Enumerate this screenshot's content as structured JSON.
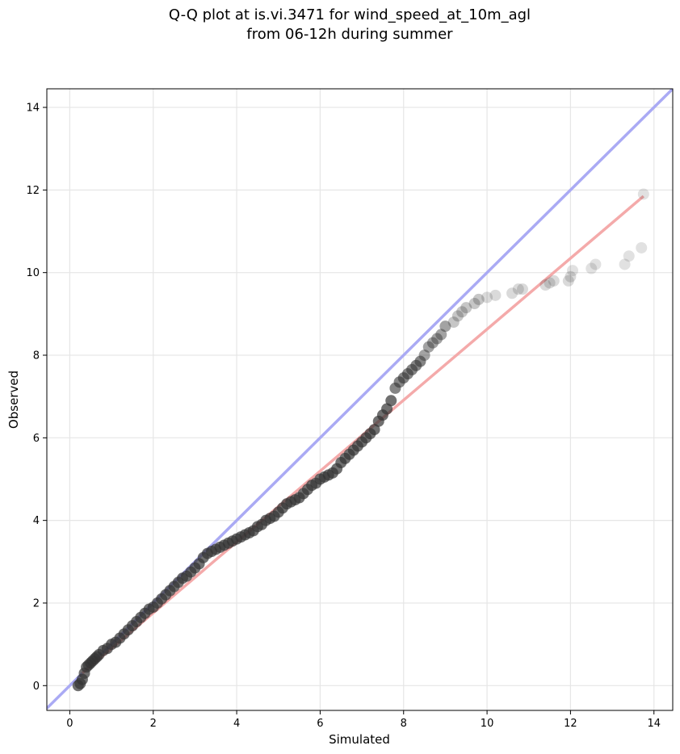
{
  "chart_data": {
    "type": "scatter",
    "title_line1": "Q-Q plot at is.vi.3471 for wind_speed_at_10m_agl",
    "title_line2": "from 06-12h during summer",
    "xlabel": "Simulated",
    "ylabel": "Observed",
    "xlim": [
      -0.55,
      14.45
    ],
    "ylim": [
      -0.6,
      14.45
    ],
    "xticks": [
      "0",
      "2",
      "4",
      "6",
      "8",
      "10",
      "12",
      "14"
    ],
    "yticks": [
      "0",
      "2",
      "4",
      "6",
      "8",
      "10",
      "12",
      "14"
    ],
    "grid": true,
    "reference_line": {
      "name": "1:1",
      "color": "#aaaaf4",
      "x": [
        -0.55,
        14.45
      ],
      "y": [
        -0.55,
        14.45
      ]
    },
    "fit_line": {
      "name": "fit",
      "color": "#f4aaaa",
      "x": [
        0.3,
        13.75
      ],
      "y": [
        0.3,
        11.85
      ]
    },
    "marker_color": "#333333",
    "series": [
      {
        "x": [
          0.2,
          0.25,
          0.3,
          0.35,
          0.4,
          0.45,
          0.5,
          0.55,
          0.6,
          0.65,
          0.7,
          0.8,
          0.9,
          1.0,
          1.1,
          1.2,
          1.3,
          1.4,
          1.5,
          1.6,
          1.7,
          1.8,
          1.9,
          2.0,
          2.1,
          2.2,
          2.3,
          2.4,
          2.5,
          2.6,
          2.7,
          2.8,
          2.9,
          3.0,
          3.1,
          3.2,
          3.3,
          3.4,
          3.5,
          3.6,
          3.7,
          3.8,
          3.9,
          4.0,
          4.1,
          4.2,
          4.3,
          4.4,
          4.5,
          4.6,
          4.7,
          4.8,
          4.9,
          5.0,
          5.1,
          5.2,
          5.3,
          5.4,
          5.5,
          5.6,
          5.7,
          5.8,
          5.9,
          6.0,
          6.1,
          6.2,
          6.3,
          6.4,
          6.5,
          6.6,
          6.7,
          6.8,
          6.9,
          7.0,
          7.1,
          7.2,
          7.3,
          7.4,
          7.5,
          7.6,
          7.7,
          7.8,
          7.9,
          8.0,
          8.1,
          8.2,
          8.3,
          8.4,
          8.5,
          8.6,
          8.7,
          8.8,
          8.9,
          9.0,
          9.2,
          9.3,
          9.4,
          9.5,
          9.7,
          9.8,
          10.0,
          10.2,
          10.6,
          10.75,
          10.85,
          11.4,
          11.5,
          11.6,
          11.95,
          12.0,
          12.05,
          12.5,
          12.6,
          13.3,
          13.4,
          13.7,
          13.75
        ],
        "y": [
          0.0,
          0.05,
          0.15,
          0.3,
          0.45,
          0.5,
          0.55,
          0.6,
          0.65,
          0.7,
          0.75,
          0.85,
          0.9,
          1.0,
          1.05,
          1.15,
          1.25,
          1.35,
          1.45,
          1.55,
          1.65,
          1.75,
          1.85,
          1.9,
          2.0,
          2.1,
          2.2,
          2.3,
          2.4,
          2.5,
          2.6,
          2.65,
          2.75,
          2.85,
          2.95,
          3.1,
          3.2,
          3.25,
          3.3,
          3.35,
          3.4,
          3.45,
          3.5,
          3.55,
          3.6,
          3.65,
          3.7,
          3.75,
          3.85,
          3.9,
          4.0,
          4.05,
          4.1,
          4.2,
          4.3,
          4.4,
          4.45,
          4.5,
          4.55,
          4.65,
          4.75,
          4.85,
          4.9,
          5.0,
          5.05,
          5.1,
          5.15,
          5.25,
          5.4,
          5.5,
          5.6,
          5.7,
          5.8,
          5.9,
          6.0,
          6.1,
          6.2,
          6.4,
          6.55,
          6.7,
          6.9,
          7.2,
          7.35,
          7.45,
          7.55,
          7.65,
          7.75,
          7.85,
          8.0,
          8.2,
          8.3,
          8.4,
          8.5,
          8.7,
          8.8,
          8.95,
          9.05,
          9.15,
          9.25,
          9.35,
          9.4,
          9.45,
          9.5,
          9.6,
          9.6,
          9.7,
          9.75,
          9.8,
          9.8,
          9.9,
          10.05,
          10.1,
          10.2,
          10.2,
          10.4,
          10.6,
          11.9
        ]
      }
    ]
  }
}
